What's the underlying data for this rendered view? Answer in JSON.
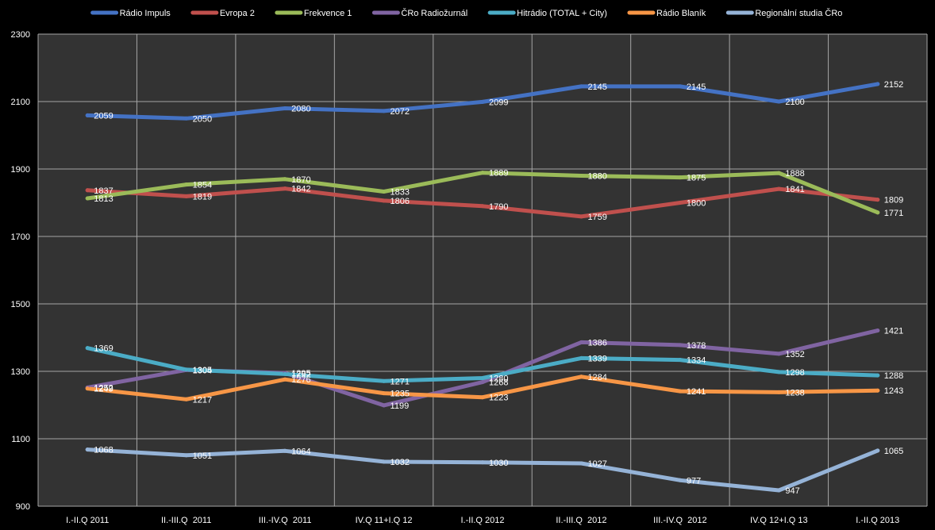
{
  "chart_data": {
    "type": "line",
    "categories": [
      "I.-II.Q 2011",
      "II.-III.Q  2011",
      "III.-IV.Q  2011",
      "IV.Q 11+I.Q 12",
      "I.-II.Q 2012",
      "II.-III.Q  2012",
      "III.-IV.Q  2012",
      "IV.Q 12+I.Q 13",
      "I.-II.Q 2013"
    ],
    "ylim": [
      900,
      2300
    ],
    "yticks": [
      900,
      1100,
      1300,
      1500,
      1700,
      1900,
      2100,
      2300
    ],
    "grid": true,
    "legend_position": "top",
    "plot_background": "#333333",
    "page_background": "#000000",
    "grid_color": "#a6a6a6",
    "series": [
      {
        "name": "Rádio Impuls",
        "color": "#4472c4",
        "values": [
          2059,
          2050,
          2080,
          2072,
          2099,
          2145,
          2145,
          2100,
          2152
        ]
      },
      {
        "name": "Evropa 2",
        "color": "#c0504d",
        "values": [
          1837,
          1819,
          1842,
          1806,
          1790,
          1759,
          1800,
          1841,
          1809
        ]
      },
      {
        "name": "Frekvence 1",
        "color": "#9bbb59",
        "values": [
          1813,
          1854,
          1870,
          1833,
          1889,
          1880,
          1875,
          1888,
          1771
        ]
      },
      {
        "name": "ČRo Radiožurnál",
        "color": "#8064a2",
        "values": [
          1252,
          1304,
          1295,
          1199,
          1268,
          1386,
          1378,
          1352,
          1421
        ]
      },
      {
        "name": "Hitrádio (TOTAL + City)",
        "color": "#4bacc6",
        "values": [
          1369,
          1305,
          1292,
          1271,
          1280,
          1339,
          1334,
          1298,
          1288
        ]
      },
      {
        "name": "Rádio Blaník",
        "color": "#f79646",
        "values": [
          1249,
          1217,
          1276,
          1235,
          1223,
          1284,
          1241,
          1238,
          1243
        ]
      },
      {
        "name": "Regionální studia ČRo",
        "color": "#95b3d7",
        "values": [
          1068,
          1051,
          1064,
          1032,
          1030,
          1027,
          977,
          947,
          1065
        ]
      }
    ]
  }
}
